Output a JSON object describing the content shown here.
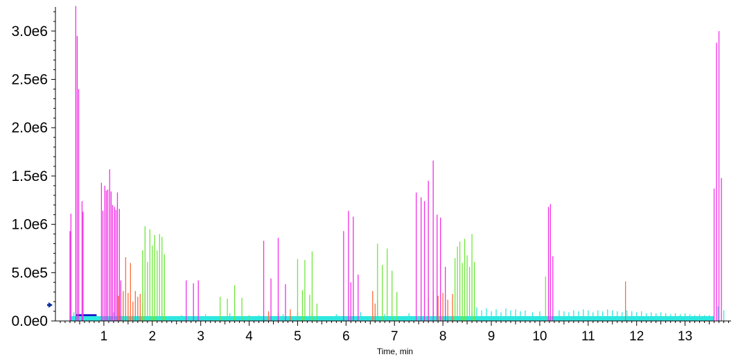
{
  "chart_data": {
    "type": "bar",
    "xlabel": "Time, min",
    "ylabel": "",
    "xlim": [
      0.0,
      13.95
    ],
    "ylim": [
      0,
      3250000
    ],
    "y_ticks": [
      {
        "value": 0,
        "label": "0.0e0"
      },
      {
        "value": 500000,
        "label": "5.0e5"
      },
      {
        "value": 1000000,
        "label": "1.0e6"
      },
      {
        "value": 1500000,
        "label": "1.5e6"
      },
      {
        "value": 2000000,
        "label": "2.0e6"
      },
      {
        "value": 2500000,
        "label": "2.5e6"
      },
      {
        "value": 3000000,
        "label": "3.0e6"
      }
    ],
    "x_ticks": [
      {
        "value": 1,
        "label": "1"
      },
      {
        "value": 2,
        "label": "2"
      },
      {
        "value": 3,
        "label": "3"
      },
      {
        "value": 4,
        "label": "4"
      },
      {
        "value": 5,
        "label": "5"
      },
      {
        "value": 6,
        "label": "6"
      },
      {
        "value": 7,
        "label": "7"
      },
      {
        "value": 8,
        "label": "8"
      },
      {
        "value": 9,
        "label": "9"
      },
      {
        "value": 10,
        "label": "10"
      },
      {
        "value": 11,
        "label": "11"
      },
      {
        "value": 12,
        "label": "12"
      },
      {
        "value": 13,
        "label": "13"
      }
    ],
    "grid": false,
    "marker_color": "#0a2fa0",
    "series": [
      {
        "color": "#1818c8",
        "baselines": [
          {
            "x0": 0.42,
            "x1": 0.85,
            "y": 70000
          },
          {
            "x0": 0.85,
            "x1": 7.4,
            "y": 40000
          },
          {
            "x0": 7.4,
            "x1": 8.8,
            "y": 30000
          }
        ]
      },
      {
        "color": "#2ee8e0",
        "baselines": [
          {
            "x0": 0.3,
            "x1": 13.6,
            "y": 50000
          }
        ],
        "sticks": [
          [
            0.38,
            90000
          ],
          [
            0.55,
            60000
          ],
          [
            1.2,
            90000
          ],
          [
            1.6,
            70000
          ],
          [
            2.2,
            80000
          ],
          [
            2.6,
            60000
          ],
          [
            3.1,
            70000
          ],
          [
            3.6,
            80000
          ],
          [
            4.2,
            60000
          ],
          [
            4.7,
            70000
          ],
          [
            5.3,
            80000
          ],
          [
            5.8,
            70000
          ],
          [
            6.3,
            90000
          ],
          [
            6.8,
            70000
          ],
          [
            7.3,
            80000
          ],
          [
            7.8,
            90000
          ],
          [
            8.6,
            100000
          ],
          [
            8.7,
            140000
          ],
          [
            8.8,
            110000
          ],
          [
            8.9,
            130000
          ],
          [
            9.0,
            100000
          ],
          [
            9.1,
            120000
          ],
          [
            9.2,
            90000
          ],
          [
            9.3,
            130000
          ],
          [
            9.4,
            110000
          ],
          [
            9.5,
            120000
          ],
          [
            9.6,
            100000
          ],
          [
            9.7,
            110000
          ],
          [
            9.85,
            90000
          ],
          [
            10.0,
            100000
          ],
          [
            10.4,
            110000
          ],
          [
            10.5,
            100000
          ],
          [
            10.6,
            90000
          ],
          [
            10.7,
            110000
          ],
          [
            10.8,
            100000
          ],
          [
            10.9,
            120000
          ],
          [
            11.0,
            110000
          ],
          [
            11.1,
            90000
          ],
          [
            11.2,
            110000
          ],
          [
            11.3,
            100000
          ],
          [
            11.4,
            120000
          ],
          [
            11.5,
            110000
          ],
          [
            11.6,
            100000
          ],
          [
            11.7,
            90000
          ],
          [
            11.8,
            110000
          ],
          [
            11.9,
            100000
          ],
          [
            12.0,
            90000
          ],
          [
            12.1,
            100000
          ],
          [
            12.2,
            80000
          ],
          [
            12.3,
            90000
          ],
          [
            12.4,
            80000
          ],
          [
            12.5,
            90000
          ],
          [
            12.6,
            80000
          ],
          [
            12.7,
            70000
          ],
          [
            12.8,
            80000
          ],
          [
            12.9,
            70000
          ],
          [
            13.0,
            80000
          ],
          [
            13.1,
            70000
          ],
          [
            13.2,
            60000
          ],
          [
            13.3,
            70000
          ],
          [
            13.4,
            60000
          ],
          [
            13.5,
            60000
          ],
          [
            13.68,
            150000
          ],
          [
            13.8,
            110000
          ]
        ]
      },
      {
        "color": "#ff6a3a",
        "sticks": [
          [
            1.3,
            260000
          ],
          [
            1.35,
            380000
          ],
          [
            1.4,
            310000
          ],
          [
            1.45,
            660000
          ],
          [
            1.5,
            290000
          ],
          [
            1.55,
            600000
          ],
          [
            1.6,
            200000
          ],
          [
            1.65,
            310000
          ],
          [
            1.7,
            250000
          ],
          [
            1.75,
            280000
          ],
          [
            1.8,
            190000
          ],
          [
            1.85,
            300000
          ],
          [
            4.4,
            100000
          ],
          [
            4.6,
            80000
          ],
          [
            4.85,
            120000
          ],
          [
            5.0,
            90000
          ],
          [
            6.55,
            310000
          ],
          [
            6.6,
            180000
          ],
          [
            6.65,
            220000
          ],
          [
            7.7,
            240000
          ],
          [
            7.8,
            310000
          ],
          [
            7.9,
            260000
          ],
          [
            8.0,
            290000
          ],
          [
            8.1,
            220000
          ],
          [
            8.2,
            280000
          ],
          [
            11.77,
            410000
          ]
        ]
      },
      {
        "color": "#6ee63a",
        "sticks": [
          [
            1.8,
            730000
          ],
          [
            1.85,
            980000
          ],
          [
            1.9,
            610000
          ],
          [
            1.95,
            950000
          ],
          [
            2.0,
            780000
          ],
          [
            2.05,
            890000
          ],
          [
            2.1,
            730000
          ],
          [
            2.15,
            900000
          ],
          [
            2.2,
            870000
          ],
          [
            2.25,
            690000
          ],
          [
            3.4,
            250000
          ],
          [
            3.55,
            230000
          ],
          [
            3.7,
            370000
          ],
          [
            3.85,
            240000
          ],
          [
            4.0,
            60000
          ],
          [
            5.0,
            640000
          ],
          [
            5.1,
            320000
          ],
          [
            5.15,
            630000
          ],
          [
            5.25,
            270000
          ],
          [
            5.3,
            720000
          ],
          [
            5.4,
            180000
          ],
          [
            6.65,
            800000
          ],
          [
            6.75,
            580000
          ],
          [
            6.85,
            750000
          ],
          [
            6.95,
            520000
          ],
          [
            7.05,
            300000
          ],
          [
            8.25,
            650000
          ],
          [
            8.3,
            770000
          ],
          [
            8.35,
            820000
          ],
          [
            8.4,
            600000
          ],
          [
            8.45,
            850000
          ],
          [
            8.5,
            680000
          ],
          [
            8.55,
            560000
          ],
          [
            8.6,
            900000
          ],
          [
            8.65,
            610000
          ],
          [
            10.12,
            460000
          ]
        ]
      },
      {
        "color": "#f22de6",
        "sticks": [
          [
            0.3,
            930000
          ],
          [
            0.32,
            1110000
          ],
          [
            0.42,
            3260000
          ],
          [
            0.45,
            2950000
          ],
          [
            0.48,
            2400000
          ],
          [
            0.55,
            1240000
          ],
          [
            0.57,
            1130000
          ],
          [
            0.95,
            1430000
          ],
          [
            0.98,
            1140000
          ],
          [
            1.02,
            1400000
          ],
          [
            1.05,
            1350000
          ],
          [
            1.08,
            1360000
          ],
          [
            1.12,
            1570000
          ],
          [
            1.15,
            1340000
          ],
          [
            1.18,
            1200000
          ],
          [
            1.22,
            1180000
          ],
          [
            1.25,
            1150000
          ],
          [
            1.28,
            1330000
          ],
          [
            1.32,
            1160000
          ],
          [
            1.35,
            420000
          ],
          [
            2.7,
            420000
          ],
          [
            2.85,
            390000
          ],
          [
            2.95,
            420000
          ],
          [
            4.3,
            830000
          ],
          [
            4.45,
            440000
          ],
          [
            4.6,
            860000
          ],
          [
            4.75,
            380000
          ],
          [
            5.95,
            930000
          ],
          [
            6.05,
            1140000
          ],
          [
            6.1,
            400000
          ],
          [
            6.15,
            1080000
          ],
          [
            6.25,
            480000
          ],
          [
            7.45,
            1330000
          ],
          [
            7.55,
            1280000
          ],
          [
            7.62,
            1240000
          ],
          [
            7.7,
            1450000
          ],
          [
            7.8,
            1660000
          ],
          [
            7.88,
            1100000
          ],
          [
            7.95,
            1070000
          ],
          [
            8.05,
            560000
          ],
          [
            10.18,
            1180000
          ],
          [
            10.22,
            1210000
          ],
          [
            10.27,
            670000
          ],
          [
            13.6,
            1370000
          ],
          [
            13.65,
            2880000
          ],
          [
            13.7,
            3000000
          ],
          [
            13.75,
            1480000
          ]
        ]
      }
    ]
  }
}
